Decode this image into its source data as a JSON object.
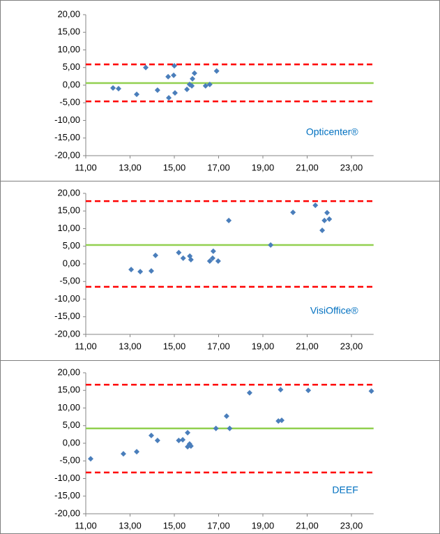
{
  "chart_data": [
    {
      "type": "scatter",
      "annotation": "Opticenter®",
      "color": "#4a7ebb",
      "x": [
        12.23,
        12.48,
        13.3,
        13.71,
        14.24,
        14.72,
        14.75,
        14.97,
        15.0,
        15.03,
        15.57,
        15.69,
        15.79,
        15.82,
        15.91,
        16.41,
        16.6,
        16.91
      ],
      "values": [
        -0.8,
        -1.0,
        -2.6,
        5.0,
        -1.4,
        2.4,
        -3.6,
        2.8,
        5.5,
        -2.2,
        -1.2,
        0.2,
        -0.2,
        1.8,
        3.4,
        -0.2,
        0.2,
        4.0
      ],
      "mean": 0.6,
      "mean_color": "#92d050",
      "upper_limit": 5.9,
      "lower_limit": -4.6,
      "limit_color": "#ff0000",
      "xlim": [
        11,
        24
      ],
      "ylim": [
        -20,
        20
      ],
      "xticks": [
        {
          "value": 11,
          "label": "11,00"
        },
        {
          "value": 13,
          "label": "13,00"
        },
        {
          "value": 15,
          "label": "15,00"
        },
        {
          "value": 17,
          "label": "17,00"
        },
        {
          "value": 19,
          "label": "19,00"
        },
        {
          "value": 21,
          "label": "21,00"
        },
        {
          "value": 23,
          "label": "23,00"
        }
      ],
      "yticks": [
        {
          "value": -20,
          "label": "-20,00"
        },
        {
          "value": -15,
          "label": "-15,00"
        },
        {
          "value": -10,
          "label": "-10,00"
        },
        {
          "value": -5,
          "label": "-5,00"
        },
        {
          "value": 0,
          "label": "0,00"
        },
        {
          "value": 5,
          "label": "5,00"
        },
        {
          "value": 10,
          "label": "10,00"
        },
        {
          "value": 15,
          "label": "15,00"
        },
        {
          "value": 20,
          "label": "20,00"
        }
      ]
    },
    {
      "type": "scatter",
      "annotation": "VisiOffice®",
      "color": "#4a7ebb",
      "x": [
        13.05,
        13.46,
        13.96,
        14.15,
        15.2,
        15.4,
        15.7,
        15.75,
        16.6,
        16.73,
        16.76,
        16.98,
        17.46,
        19.35,
        20.36,
        21.37,
        21.68,
        21.78,
        21.9,
        22.0
      ],
      "values": [
        -1.6,
        -2.2,
        -2.0,
        2.4,
        3.2,
        1.6,
        2.2,
        1.2,
        0.8,
        1.6,
        3.6,
        0.8,
        12.3,
        5.35,
        14.6,
        16.6,
        9.5,
        12.3,
        14.5,
        12.7
      ],
      "mean": 5.35,
      "mean_color": "#92d050",
      "upper_limit": 17.8,
      "lower_limit": -6.5,
      "limit_color": "#ff0000",
      "xlim": [
        11,
        24
      ],
      "ylim": [
        -20,
        20
      ],
      "xticks": [
        {
          "value": 11,
          "label": "11,00"
        },
        {
          "value": 13,
          "label": "13,00"
        },
        {
          "value": 15,
          "label": "15,00"
        },
        {
          "value": 17,
          "label": "17,00"
        },
        {
          "value": 19,
          "label": "19,00"
        },
        {
          "value": 21,
          "label": "21,00"
        },
        {
          "value": 23,
          "label": "23,00"
        }
      ],
      "yticks": [
        {
          "value": -20,
          "label": "-20,00"
        },
        {
          "value": -15,
          "label": "-15,00"
        },
        {
          "value": -10,
          "label": "-10,00"
        },
        {
          "value": -5,
          "label": "-5,00"
        },
        {
          "value": 0,
          "label": "0,00"
        },
        {
          "value": 5,
          "label": "5,00"
        },
        {
          "value": 10,
          "label": "10,00"
        },
        {
          "value": 15,
          "label": "15,00"
        },
        {
          "value": 20,
          "label": "20,00"
        }
      ]
    },
    {
      "type": "scatter",
      "annotation": "DEEF",
      "color": "#4a7ebb",
      "x": [
        11.22,
        12.7,
        13.3,
        13.96,
        14.24,
        15.2,
        15.38,
        15.6,
        15.6,
        15.69,
        15.75,
        16.88,
        17.36,
        17.5,
        18.4,
        19.7,
        19.85,
        19.8,
        21.05,
        23.9
      ],
      "values": [
        -4.4,
        -3.0,
        -2.4,
        2.2,
        0.8,
        0.8,
        1.0,
        3.0,
        -1.0,
        -0.2,
        -0.8,
        4.2,
        7.7,
        4.2,
        14.3,
        6.3,
        6.5,
        15.2,
        15.0,
        14.8
      ],
      "mean": 4.2,
      "mean_color": "#92d050",
      "upper_limit": 16.6,
      "lower_limit": -8.3,
      "limit_color": "#ff0000",
      "xlim": [
        11,
        24
      ],
      "ylim": [
        -20,
        20
      ],
      "xticks": [
        {
          "value": 11,
          "label": "11,00"
        },
        {
          "value": 13,
          "label": "13,00"
        },
        {
          "value": 15,
          "label": "15,00"
        },
        {
          "value": 17,
          "label": "17,00"
        },
        {
          "value": 19,
          "label": "19,00"
        },
        {
          "value": 21,
          "label": "21,00"
        },
        {
          "value": 23,
          "label": "23,00"
        }
      ],
      "yticks": [
        {
          "value": -20,
          "label": "-20,00"
        },
        {
          "value": -15,
          "label": "-15,00"
        },
        {
          "value": -10,
          "label": "-10,00"
        },
        {
          "value": -5,
          "label": "-5,00"
        },
        {
          "value": 0,
          "label": "0,00"
        },
        {
          "value": 5,
          "label": "5,00"
        },
        {
          "value": 10,
          "label": "10,00"
        },
        {
          "value": 15,
          "label": "15,00"
        },
        {
          "value": 20,
          "label": "20,00"
        }
      ]
    }
  ]
}
